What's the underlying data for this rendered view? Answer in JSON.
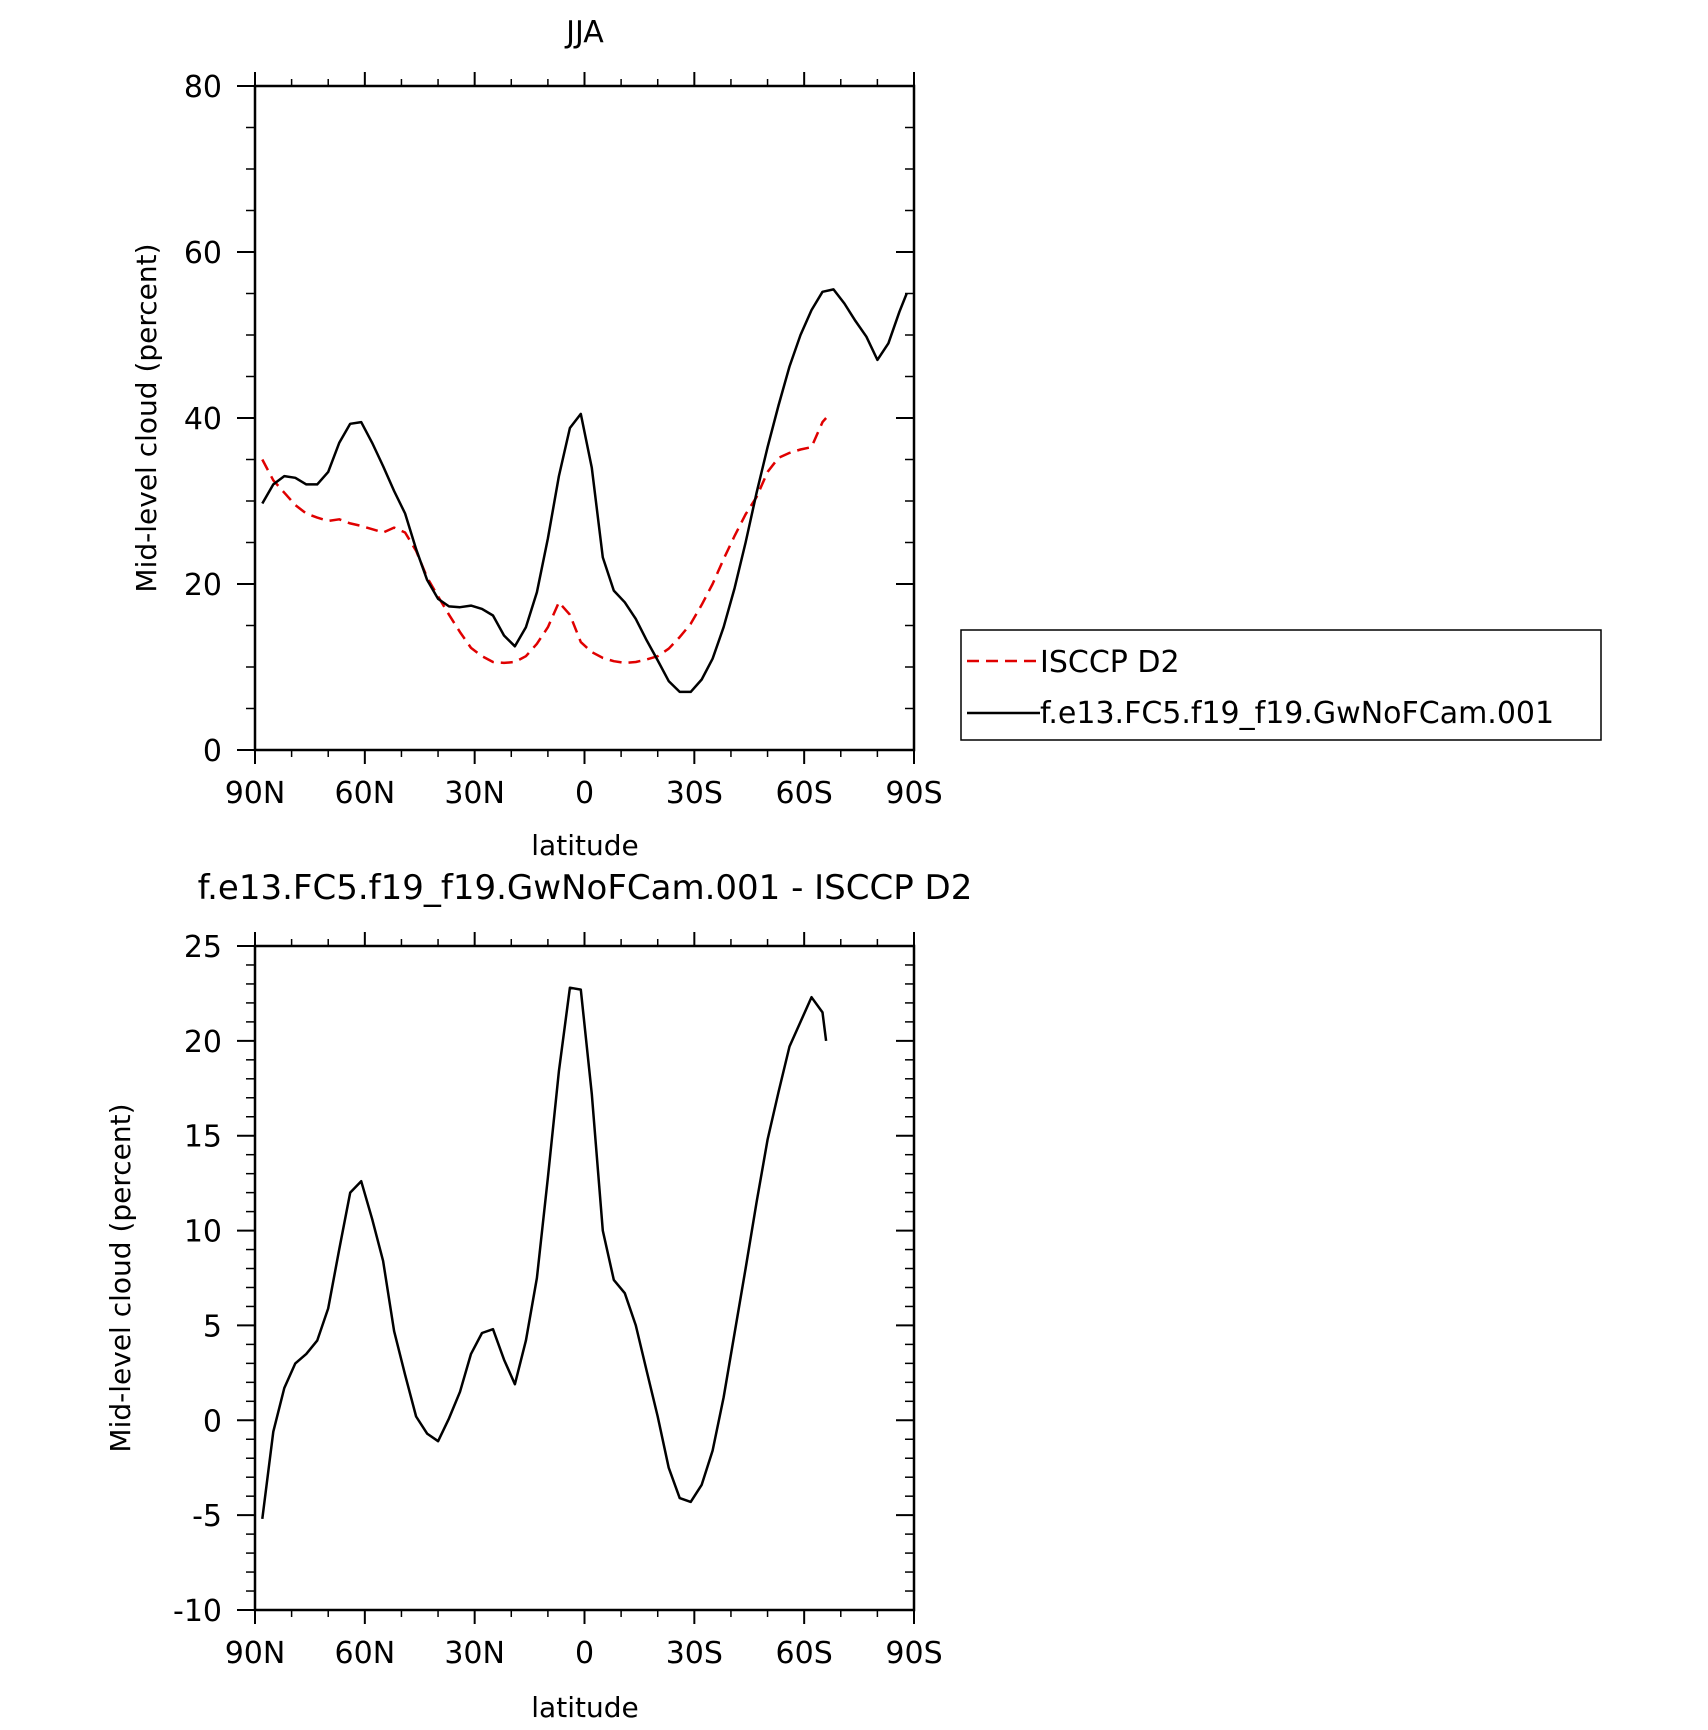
{
  "chart_data": [
    {
      "type": "line",
      "title": "JJA",
      "xlabel": "latitude",
      "ylabel": "Mid-level cloud (percent)",
      "xlim": [
        90,
        -90
      ],
      "ylim": [
        0,
        80
      ],
      "xticks": [
        90,
        60,
        30,
        0,
        -30,
        -60,
        -90
      ],
      "xtick_labels": [
        "90N",
        "60N",
        "30N",
        "0",
        "30S",
        "60S",
        "90S"
      ],
      "yticks": [
        0,
        20,
        40,
        60,
        80
      ],
      "ytick_labels": [
        "0",
        "20",
        "40",
        "60",
        "80"
      ],
      "grid": false,
      "legend_position": "right",
      "series": [
        {
          "name": "ISCCP D2",
          "color": "#e00000",
          "dash": "dashed",
          "x": [
            88,
            85,
            82,
            79,
            76,
            73,
            70,
            67,
            64,
            61,
            58,
            55,
            52,
            49,
            46,
            43,
            40,
            37,
            34,
            31,
            28,
            25,
            22,
            19,
            16,
            13,
            10,
            7,
            4,
            1,
            -2,
            -5,
            -8,
            -11,
            -14,
            -17,
            -20,
            -23,
            -26,
            -29,
            -32,
            -35,
            -38,
            -41,
            -44,
            -47,
            -50,
            -53,
            -56,
            -59,
            -62,
            -65,
            -66
          ],
          "y": [
            35,
            32.5,
            31,
            29.5,
            28.5,
            28,
            27.6,
            27.8,
            27.3,
            27,
            26.6,
            26.2,
            26.8,
            26.2,
            24,
            20.8,
            18.5,
            16.3,
            14.2,
            12.3,
            11.3,
            10.6,
            10.5,
            10.6,
            11.3,
            12.8,
            14.8,
            17.8,
            16.3,
            13,
            11.8,
            11.1,
            10.7,
            10.5,
            10.6,
            10.9,
            11.3,
            12.2,
            13.6,
            15.2,
            17.5,
            20,
            23,
            25.8,
            28.4,
            30.5,
            33.5,
            35.2,
            35.8,
            36.2,
            36.5,
            39.5,
            40
          ]
        },
        {
          "name": "f.e13.FC5.f19_f19.GwNoFCam.001",
          "color": "#000000",
          "dash": "solid",
          "x": [
            88,
            85,
            82,
            79,
            76,
            73,
            70,
            67,
            64,
            61,
            58,
            55,
            52,
            49,
            46,
            43,
            40,
            37,
            34,
            31,
            28,
            25,
            22,
            19,
            16,
            13,
            10,
            7,
            4,
            1,
            -2,
            -5,
            -8,
            -11,
            -14,
            -17,
            -20,
            -23,
            -26,
            -29,
            -32,
            -35,
            -38,
            -41,
            -44,
            -47,
            -50,
            -53,
            -56,
            -59,
            -62,
            -65,
            -68,
            -71,
            -74,
            -77,
            -80,
            -83,
            -86,
            -88
          ],
          "y": [
            29.7,
            32,
            33,
            32.8,
            32,
            32,
            33.5,
            37,
            39.3,
            39.5,
            37,
            34.2,
            31.2,
            28.5,
            24.2,
            20.5,
            18.2,
            17.3,
            17.2,
            17.4,
            17,
            16.2,
            13.8,
            12.5,
            14.8,
            19,
            25.5,
            33,
            38.8,
            40.5,
            34,
            23.2,
            19.2,
            17.8,
            15.8,
            13.2,
            10.8,
            8.3,
            7,
            7,
            8.5,
            11,
            14.8,
            19.5,
            25,
            31,
            36.5,
            41.5,
            46.2,
            50,
            53,
            55.2,
            55.5,
            53.8,
            51.7,
            49.8,
            47,
            49,
            52.8,
            55
          ]
        }
      ]
    },
    {
      "type": "line",
      "title": "f.e13.FC5.f19_f19.GwNoFCam.001 - ISCCP D2",
      "xlabel": "latitude",
      "ylabel": "Mid-level cloud (percent)",
      "xlim": [
        90,
        -90
      ],
      "ylim": [
        -10,
        25
      ],
      "xticks": [
        90,
        60,
        30,
        0,
        -30,
        -60,
        -90
      ],
      "xtick_labels": [
        "90N",
        "60N",
        "30N",
        "0",
        "30S",
        "60S",
        "90S"
      ],
      "yticks": [
        -10,
        -5,
        0,
        5,
        10,
        15,
        20,
        25
      ],
      "ytick_labels": [
        "-10",
        "-5",
        "0",
        "5",
        "10",
        "15",
        "20",
        "25"
      ],
      "grid": false,
      "series": [
        {
          "color": "#000000",
          "dash": "solid",
          "x": [
            88,
            85,
            82,
            79,
            76,
            73,
            70,
            67,
            64,
            61,
            58,
            55,
            52,
            49,
            46,
            43,
            40,
            37,
            34,
            31,
            28,
            25,
            22,
            19,
            16,
            13,
            10,
            7,
            4,
            1,
            -2,
            -5,
            -8,
            -11,
            -14,
            -17,
            -20,
            -23,
            -26,
            -29,
            -32,
            -35,
            -38,
            -41,
            -44,
            -47,
            -50,
            -53,
            -56,
            -59,
            -62,
            -65,
            -66
          ],
          "y": [
            -5.2,
            -0.6,
            1.7,
            3,
            3.5,
            4.2,
            5.9,
            9,
            12,
            12.6,
            10.6,
            8.4,
            4.7,
            2.4,
            0.2,
            -0.7,
            -1.1,
            0.1,
            1.5,
            3.5,
            4.6,
            4.8,
            3.2,
            1.9,
            4.2,
            7.5,
            12.8,
            18.4,
            22.8,
            22.7,
            17.2,
            10,
            7.4,
            6.7,
            5,
            2.6,
            0.2,
            -2.5,
            -4.1,
            -4.3,
            -3.4,
            -1.6,
            1.2,
            4.6,
            8,
            11.5,
            14.8,
            17.3,
            19.7,
            21,
            22.3,
            21.5,
            20
          ]
        }
      ]
    }
  ]
}
